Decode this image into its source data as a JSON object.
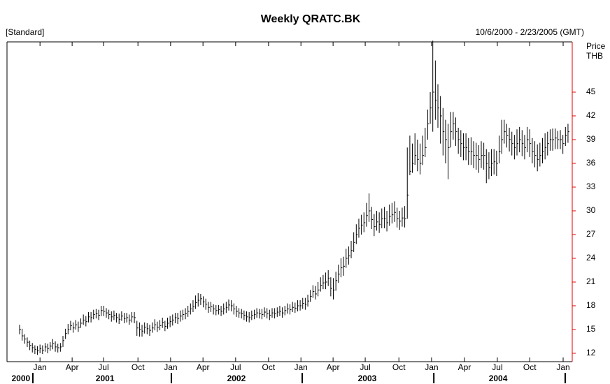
{
  "chart_data": {
    "type": "ohlc",
    "title": "Weekly QRATC.BK",
    "subtitle_left": "[Standard]",
    "subtitle_right": "10/6/2000 - 2/23/2005 (GMT)",
    "y_label": [
      "Price",
      "THB"
    ],
    "color": "#000000",
    "axis_color": "#e00000",
    "xlim": [
      -4.94,
      216.66
    ],
    "ylim": [
      10.94,
      51.35
    ],
    "yticks": [
      12,
      15,
      18,
      21,
      24,
      27,
      30,
      33,
      36,
      39,
      42,
      45
    ],
    "xticks": [
      {
        "value": 8.0,
        "label": "Jan"
      },
      {
        "value": 20.6,
        "label": "Apr"
      },
      {
        "value": 32.9,
        "label": "Jul"
      },
      {
        "value": 46.4,
        "label": "Oct"
      },
      {
        "value": 59.2,
        "label": "Jan"
      },
      {
        "value": 71.9,
        "label": "Apr"
      },
      {
        "value": 84.7,
        "label": "Jul"
      },
      {
        "value": 97.6,
        "label": "Oct"
      },
      {
        "value": 110.3,
        "label": "Jan"
      },
      {
        "value": 122.9,
        "label": "Apr"
      },
      {
        "value": 135.5,
        "label": "Jul"
      },
      {
        "value": 148.7,
        "label": "Oct"
      },
      {
        "value": 161.5,
        "label": "Jan"
      },
      {
        "value": 174.4,
        "label": "Apr"
      },
      {
        "value": 187.3,
        "label": "Jul"
      },
      {
        "value": 200.0,
        "label": "Oct"
      },
      {
        "value": 213.1,
        "label": "Jan"
      }
    ],
    "year_labels": [
      {
        "value": 0.5,
        "label": "2000"
      },
      {
        "value": 33.5,
        "label": "2001"
      },
      {
        "value": 85.0,
        "label": "2002"
      },
      {
        "value": 136.3,
        "label": "2003"
      },
      {
        "value": 187.6,
        "label": "2004"
      }
    ],
    "year_breaks": [
      5.2,
      59.5,
      110.8,
      162.4,
      213.9
    ],
    "high": [
      15.6,
      15.1,
      14.4,
      14.0,
      13.6,
      13.3,
      13.0,
      12.9,
      13.1,
      13.0,
      13.3,
      13.2,
      13.4,
      13.8,
      13.5,
      13.2,
      13.3,
      14.2,
      15.1,
      15.7,
      16.1,
      15.9,
      16.2,
      16.0,
      16.4,
      16.9,
      16.7,
      17.2,
      17.2,
      17.5,
      17.6,
      17.5,
      18.0,
      18.0,
      17.7,
      17.5,
      17.3,
      17.4,
      17.1,
      17.0,
      17.3,
      17.1,
      17.1,
      16.9,
      17.2,
      17.2,
      16.1,
      15.9,
      15.6,
      15.9,
      15.8,
      15.6,
      15.9,
      16.3,
      16.0,
      16.2,
      16.5,
      16.1,
      16.5,
      16.7,
      16.9,
      17.1,
      17.1,
      17.4,
      17.5,
      17.7,
      18.0,
      18.3,
      18.7,
      19.3,
      19.6,
      19.5,
      19.2,
      18.9,
      18.5,
      18.5,
      18.2,
      18.1,
      18.1,
      18.0,
      18.3,
      18.5,
      18.8,
      18.7,
      18.3,
      18.0,
      17.7,
      17.6,
      17.4,
      17.3,
      17.2,
      17.4,
      17.5,
      17.7,
      17.6,
      17.6,
      17.8,
      17.7,
      17.5,
      17.7,
      17.7,
      17.8,
      18.0,
      17.8,
      18.0,
      18.3,
      18.2,
      18.5,
      18.4,
      18.7,
      18.7,
      19.0,
      19.0,
      19.4,
      20.0,
      20.6,
      20.5,
      21.0,
      21.6,
      21.9,
      22.2,
      22.5,
      21.6,
      21.5,
      22.3,
      23.2,
      24.0,
      24.2,
      25.2,
      25.5,
      26.2,
      27.3,
      28.3,
      29.0,
      29.5,
      29.8,
      31.0,
      32.2,
      30.5,
      29.6,
      30.0,
      29.8,
      30.3,
      30.5,
      30.0,
      30.8,
      31.0,
      31.2,
      30.4,
      30.0,
      30.4,
      30.6,
      38.0,
      39.5,
      38.5,
      39.8,
      39.0,
      38.5,
      39.5,
      40.5,
      42.8,
      45.0,
      51.5,
      49.0,
      46.0,
      44.5,
      43.0,
      41.5,
      41.0,
      42.5,
      42.5,
      41.8,
      40.5,
      40.2,
      39.8,
      39.8,
      39.2,
      39.3,
      38.8,
      38.6,
      38.3,
      38.8,
      38.6,
      37.8,
      37.4,
      37.8,
      37.8,
      37.6,
      39.5,
      41.5,
      41.5,
      41.0,
      40.5,
      40.0,
      39.6,
      40.3,
      40.6,
      40.2,
      39.6,
      40.6,
      40.3,
      39.2,
      38.8,
      38.4,
      38.6,
      39.2,
      39.8,
      40.0,
      40.3,
      40.4,
      40.4,
      40.1,
      40.2,
      39.6,
      40.6,
      41.0
    ],
    "low": [
      14.4,
      13.6,
      13.2,
      12.8,
      12.4,
      12.1,
      11.9,
      11.8,
      12.0,
      11.9,
      12.2,
      12.0,
      12.3,
      12.5,
      12.2,
      12.1,
      12.2,
      12.8,
      13.8,
      14.4,
      14.9,
      14.6,
      15.0,
      14.7,
      15.2,
      15.6,
      15.4,
      15.9,
      15.9,
      16.3,
      16.4,
      16.2,
      16.7,
      16.7,
      16.5,
      16.3,
      16.0,
      16.2,
      15.9,
      15.7,
      16.1,
      15.8,
      15.9,
      15.6,
      15.9,
      15.8,
      14.2,
      14.1,
      14.1,
      14.5,
      14.4,
      14.2,
      14.6,
      14.9,
      14.7,
      14.9,
      15.2,
      14.8,
      15.1,
      15.3,
      15.5,
      15.8,
      15.7,
      16.0,
      16.2,
      16.3,
      16.6,
      16.9,
      17.2,
      17.6,
      17.9,
      18.1,
      17.8,
      17.5,
      17.1,
      17.2,
      16.9,
      16.8,
      16.9,
      16.7,
      16.9,
      17.1,
      17.4,
      17.3,
      16.9,
      16.6,
      16.5,
      16.4,
      16.2,
      16.0,
      15.9,
      16.2,
      16.3,
      16.5,
      16.4,
      16.3,
      16.6,
      16.4,
      16.2,
      16.5,
      16.4,
      16.6,
      16.7,
      16.5,
      16.8,
      17.0,
      16.9,
      17.2,
      17.1,
      17.3,
      17.4,
      17.6,
      17.5,
      17.9,
      18.5,
      19.0,
      18.8,
      19.2,
      19.8,
      20.1,
      20.1,
      20.5,
      19.2,
      18.8,
      19.9,
      20.9,
      21.6,
      21.8,
      22.8,
      23.2,
      24.0,
      24.8,
      25.8,
      26.6,
      27.0,
      27.3,
      28.0,
      28.6,
      27.7,
      26.8,
      27.5,
      27.2,
      27.8,
      27.8,
      27.4,
      28.1,
      28.4,
      28.6,
      27.9,
      27.6,
      28.0,
      27.9,
      29.0,
      34.5,
      34.8,
      35.8,
      35.0,
      34.6,
      35.8,
      36.8,
      39.0,
      41.0,
      40.0,
      41.5,
      40.5,
      38.5,
      37.0,
      36.0,
      34.0,
      38.0,
      39.0,
      38.2,
      37.2,
      36.8,
      36.4,
      36.4,
      35.8,
      35.8,
      35.4,
      35.2,
      34.8,
      35.4,
      35.2,
      33.5,
      34.0,
      34.4,
      34.6,
      34.4,
      36.0,
      37.2,
      38.5,
      38.0,
      37.5,
      37.0,
      36.5,
      37.0,
      37.4,
      36.9,
      36.5,
      37.4,
      36.8,
      36.0,
      35.5,
      35.0,
      35.6,
      36.0,
      36.5,
      37.0,
      37.6,
      37.6,
      37.8,
      37.8,
      37.8,
      37.2,
      38.2,
      38.6
    ],
    "close": [
      15.0,
      14.2,
      13.8,
      13.4,
      13.0,
      12.7,
      12.5,
      12.3,
      12.6,
      12.4,
      12.8,
      12.6,
      12.9,
      13.2,
      12.8,
      12.7,
      12.8,
      13.6,
      14.5,
      15.0,
      15.5,
      15.2,
      15.6,
      15.3,
      15.8,
      16.2,
      16.0,
      16.6,
      16.5,
      16.9,
      17.0,
      16.8,
      17.4,
      17.3,
      17.1,
      16.9,
      16.6,
      16.8,
      16.5,
      16.3,
      16.7,
      16.4,
      16.5,
      16.2,
      16.6,
      16.5,
      15.2,
      15.0,
      14.8,
      15.3,
      15.1,
      14.9,
      15.2,
      15.6,
      15.3,
      15.5,
      15.9,
      15.4,
      15.8,
      16.0,
      16.2,
      16.5,
      16.4,
      16.7,
      16.9,
      17.0,
      17.3,
      17.6,
      17.9,
      18.4,
      18.7,
      18.9,
      18.5,
      18.2,
      17.8,
      17.9,
      17.6,
      17.4,
      17.5,
      17.3,
      17.6,
      17.8,
      18.1,
      18.0,
      17.6,
      17.3,
      17.1,
      17.0,
      16.8,
      16.6,
      16.5,
      16.8,
      16.9,
      17.1,
      17.0,
      16.9,
      17.2,
      17.0,
      16.8,
      17.1,
      17.0,
      17.2,
      17.3,
      17.1,
      17.4,
      17.6,
      17.5,
      17.8,
      17.7,
      18.0,
      18.0,
      18.3,
      18.2,
      18.6,
      19.2,
      19.8,
      19.5,
      20.0,
      20.6,
      20.9,
      21.0,
      21.5,
      20.2,
      20.0,
      21.2,
      22.0,
      22.8,
      23.0,
      24.0,
      24.3,
      25.0,
      26.0,
      27.0,
      27.8,
      28.2,
      28.5,
      29.4,
      30.0,
      28.9,
      28.0,
      28.6,
      28.3,
      29.0,
      29.0,
      28.5,
      29.3,
      29.5,
      29.8,
      29.0,
      28.7,
      29.1,
      29.0,
      32.0,
      35.0,
      36.0,
      37.0,
      36.5,
      36.0,
      37.0,
      38.0,
      41.0,
      43.0,
      45.0,
      44.0,
      43.0,
      42.0,
      40.0,
      39.0,
      38.0,
      40.0,
      41.0,
      40.0,
      39.0,
      38.5,
      38.0,
      38.0,
      37.5,
      37.5,
      37.0,
      37.0,
      36.5,
      37.0,
      37.0,
      36.0,
      35.5,
      36.0,
      36.2,
      36.0,
      37.5,
      39.0,
      40.0,
      39.5,
      39.0,
      38.5,
      38.0,
      38.5,
      39.0,
      38.5,
      38.0,
      39.0,
      38.5,
      37.5,
      37.0,
      36.5,
      37.0,
      37.5,
      38.0,
      38.5,
      39.0,
      39.0,
      39.2,
      39.0,
      39.0,
      38.5,
      39.5,
      40.0
    ]
  }
}
